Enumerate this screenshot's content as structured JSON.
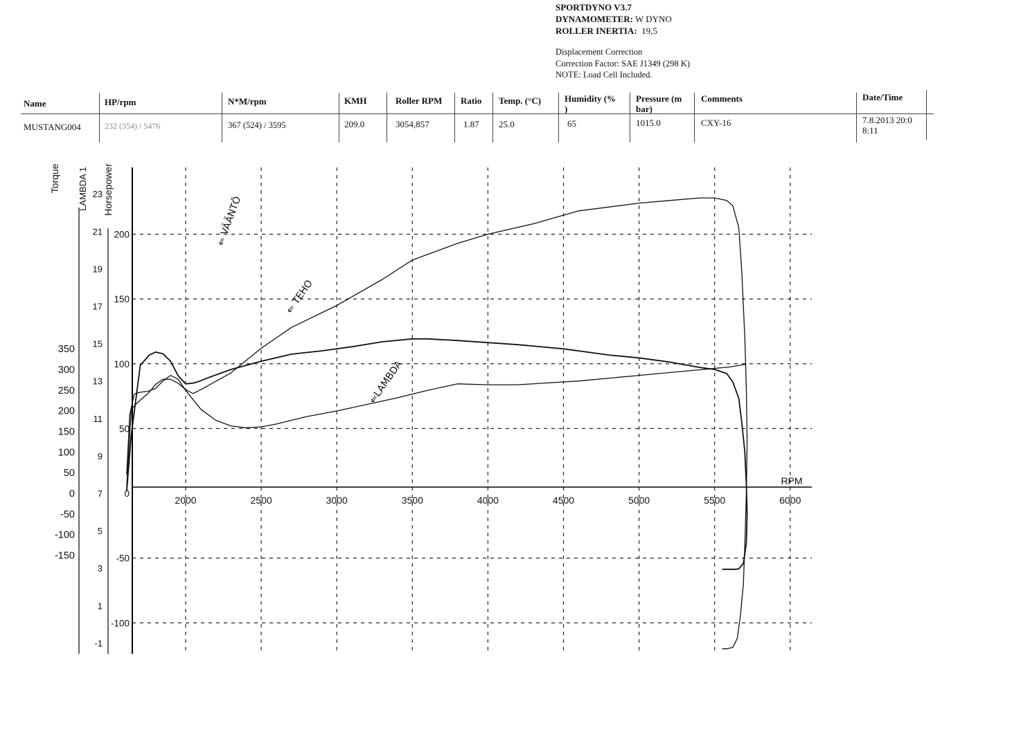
{
  "header": {
    "software": "SPORTDYNO V3.7",
    "dyno_key": "DYNAMOMETER:",
    "dyno_val": "W DYNO",
    "inertia_key": "ROLLER INERTIA:",
    "inertia_val": "19,5"
  },
  "notes": {
    "line1": "Displacement Correction",
    "line2": "Correction Factor: SAE J1349 (298 K)",
    "line3": "NOTE: Load Cell Included."
  },
  "table": {
    "headers": {
      "name": "Name",
      "hp": "HP/rpm",
      "nm": "N*M/rpm",
      "kmh": "KMH",
      "roller": "Roller RPM",
      "ratio": "Ratio",
      "temp": "Temp. (°C)",
      "humidity": "Humidity (%\n)",
      "pressure": "Pressure (m\nbar)",
      "comments": "Comments",
      "datetime": "Date/Time"
    },
    "row": {
      "name": "MUSTANG004",
      "hp": "232 (354) / 5476",
      "nm": "367 (524) / 3595",
      "kmh": "209.0",
      "roller": "3054,857",
      "ratio": "1.87",
      "temp": "25.0",
      "humidity": "65",
      "pressure": "1015.0",
      "comments": "CXY-16",
      "datetime": "7.8.2013 20:0\n8:11"
    }
  },
  "chart_data": {
    "type": "line",
    "x_axis": {
      "label": "RPM",
      "range": [
        1600,
        6100
      ],
      "ticks": [
        2000,
        2500,
        3000,
        3500,
        4000,
        4500,
        5000,
        5500,
        6000
      ]
    },
    "y_axes": {
      "torque": {
        "label": "Torque",
        "range": [
          -195,
          400
        ],
        "ticks": [
          350,
          300,
          250,
          200,
          150,
          100,
          50,
          0,
          -50,
          -100,
          -150
        ]
      },
      "lambda": {
        "label": "LAMBDA 1",
        "range": [
          -1.8,
          24.6
        ],
        "ticks": [
          23,
          21,
          19,
          17,
          15,
          13,
          11,
          9,
          7,
          5,
          3,
          1,
          -1
        ]
      },
      "horsepower": {
        "label": "Horsepower",
        "range": [
          -126,
          236
        ],
        "ticks": [
          200,
          150,
          100,
          50,
          0,
          -50,
          -100
        ]
      }
    },
    "grid": true,
    "series": [
      {
        "name": "VÄÄNTÖ",
        "axis": "torque",
        "x": [
          1610,
          1640,
          1700,
          1760,
          1800,
          1850,
          1900,
          1950,
          2000,
          2050,
          2080,
          2150,
          2300,
          2500,
          2700,
          2900,
          3100,
          3300,
          3500,
          3600,
          3800,
          4000,
          4200,
          4500,
          4800,
          5000,
          5200,
          5400,
          5500,
          5580,
          5620,
          5660,
          5680,
          5700,
          5710,
          5715,
          5710,
          5690,
          5660,
          5640,
          5620,
          5580,
          5550
        ],
        "y": [
          5,
          140,
          310,
          335,
          342,
          338,
          320,
          285,
          265,
          267,
          270,
          280,
          300,
          320,
          337,
          345,
          355,
          367,
          374,
          374,
          370,
          365,
          360,
          350,
          335,
          328,
          318,
          305,
          300,
          290,
          270,
          230,
          170,
          100,
          20,
          -50,
          -120,
          -170,
          -183,
          -184,
          -184,
          -184,
          -184
        ]
      },
      {
        "name": "TEHO",
        "axis": "horsepower",
        "x": [
          1610,
          1640,
          1700,
          1760,
          1800,
          1850,
          1900,
          1950,
          2000,
          2050,
          2100,
          2300,
          2500,
          2700,
          3000,
          3300,
          3500,
          3800,
          4000,
          4300,
          4600,
          5000,
          5200,
          5400,
          5500,
          5580,
          5620,
          5660,
          5680,
          5700,
          5710,
          5715,
          5710,
          5700,
          5690,
          5670,
          5650,
          5620,
          5580,
          5550
        ],
        "y": [
          5,
          65,
          72,
          78,
          84,
          88,
          88,
          85,
          80,
          77,
          80,
          93,
          112,
          128,
          145,
          165,
          180,
          193,
          200,
          208,
          218,
          224,
          226,
          228,
          228,
          226,
          222,
          205,
          170,
          120,
          80,
          40,
          0,
          -40,
          -70,
          -95,
          -112,
          -119,
          -120,
          -120
        ]
      },
      {
        "name": "LAMBDA",
        "axis": "lambda",
        "x": [
          1610,
          1630,
          1660,
          1700,
          1750,
          1800,
          1850,
          1900,
          1950,
          2000,
          2100,
          2200,
          2300,
          2400,
          2500,
          2600,
          2700,
          2800,
          3000,
          3200,
          3400,
          3600,
          3800,
          4000,
          4200,
          4400,
          4600,
          4800,
          5000,
          5200,
          5400,
          5600,
          5710
        ],
        "y": [
          8.0,
          11.2,
          12.3,
          12.4,
          12.45,
          12.6,
          13.0,
          13.3,
          13.1,
          12.5,
          11.5,
          10.9,
          10.6,
          10.5,
          10.55,
          10.7,
          10.9,
          11.1,
          11.4,
          11.75,
          12.1,
          12.5,
          12.85,
          12.8,
          12.8,
          12.9,
          13.0,
          13.15,
          13.3,
          13.45,
          13.6,
          13.75,
          13.9
        ]
      }
    ],
    "annotations": [
      "⇐ VÄÄNTÖ",
      "⇐ TEHO",
      "⇐LAMBDA"
    ]
  }
}
